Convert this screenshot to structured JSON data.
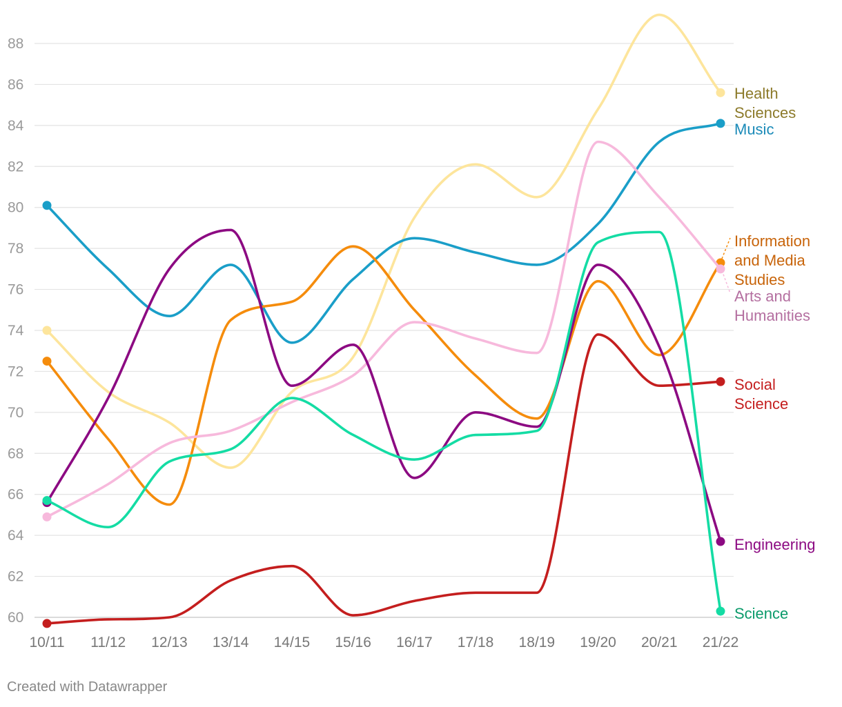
{
  "chart_data": {
    "type": "line",
    "title": "",
    "xlabel": "",
    "ylabel": "",
    "ylim": [
      60,
      89
    ],
    "yticks": [
      60,
      62,
      64,
      66,
      68,
      70,
      72,
      74,
      76,
      78,
      80,
      82,
      84,
      86,
      88
    ],
    "categories": [
      "10/11",
      "11/12",
      "12/13",
      "13/14",
      "14/15",
      "15/16",
      "16/17",
      "17/18",
      "18/19",
      "19/20",
      "20/21",
      "21/22"
    ],
    "grid": true,
    "legend": "direct labels at line ends (right)",
    "series": [
      {
        "name": "Health Sciences",
        "label_lines": [
          "Health",
          "Sciences"
        ],
        "color": "#fde59c",
        "label_color": "#8c7a2a",
        "values": [
          74.0,
          71.0,
          69.5,
          67.3,
          71.0,
          72.7,
          79.5,
          82.1,
          80.5,
          84.8,
          89.4,
          85.6
        ]
      },
      {
        "name": "Music",
        "label_lines": [
          "Music"
        ],
        "color": "#1a9ec8",
        "label_color": "#1a8ab8",
        "values": [
          80.1,
          77.0,
          74.7,
          77.2,
          73.4,
          76.5,
          78.5,
          77.8,
          77.2,
          79.2,
          83.2,
          84.1
        ]
      },
      {
        "name": "Information and Media Studies",
        "label_lines": [
          "Information",
          "and Media",
          "Studies"
        ],
        "color": "#f58c0c",
        "label_color": "#c8640a",
        "values": [
          72.5,
          68.7,
          65.5,
          74.5,
          75.4,
          78.1,
          75.0,
          71.8,
          69.7,
          76.4,
          72.8,
          77.3
        ]
      },
      {
        "name": "Arts and Humanities",
        "label_lines": [
          "Arts and",
          "Humanities"
        ],
        "color": "#f7b9dc",
        "label_color": "#b46fa0",
        "values": [
          64.9,
          66.5,
          68.5,
          69.1,
          70.5,
          71.8,
          74.4,
          73.6,
          72.9,
          83.2,
          80.5,
          77.0
        ]
      },
      {
        "name": "Social Science",
        "label_lines": [
          "Social",
          "Science"
        ],
        "color": "#c41e1e",
        "label_color": "#c41e1e",
        "values": [
          59.7,
          59.9,
          60.0,
          61.8,
          62.5,
          60.1,
          60.8,
          61.2,
          61.2,
          73.8,
          71.3,
          71.5
        ]
      },
      {
        "name": "Engineering",
        "label_lines": [
          "Engineering"
        ],
        "color": "#8c0a82",
        "label_color": "#8c0a82",
        "values": [
          65.6,
          70.7,
          77.0,
          78.9,
          71.3,
          73.3,
          66.8,
          70.0,
          69.3,
          77.2,
          73.2,
          63.7
        ]
      },
      {
        "name": "Science",
        "label_lines": [
          "Science"
        ],
        "color": "#14dca4",
        "label_color": "#0a9a6a",
        "values": [
          65.7,
          64.4,
          67.6,
          68.2,
          70.7,
          68.9,
          67.7,
          68.9,
          69.1,
          78.3,
          78.8,
          60.3
        ]
      }
    ]
  },
  "footer": {
    "credit": "Created with Datawrapper"
  }
}
